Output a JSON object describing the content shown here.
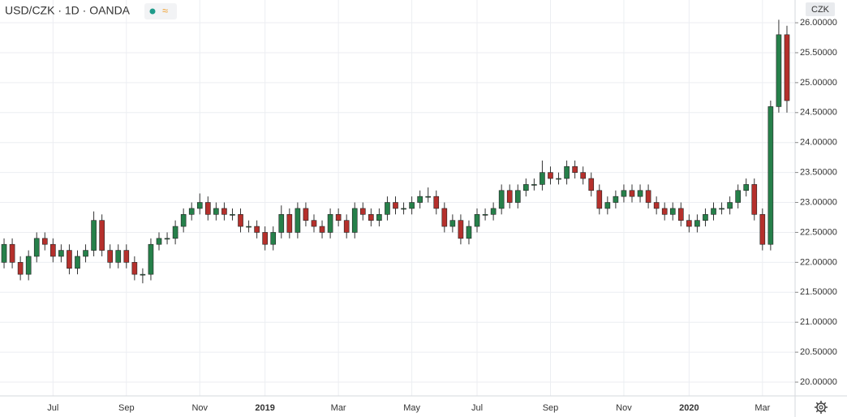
{
  "chart_data": {
    "type": "candlestick",
    "title": "USD/CZK · 1D · OANDA",
    "currency": "CZK",
    "up_color": "#26804a",
    "down_color": "#b5302c",
    "grid": true,
    "ylim": [
      19.77,
      26.38
    ],
    "yticks": [
      {
        "value": 20,
        "label": "20.00000"
      },
      {
        "value": 20.5,
        "label": "20.50000"
      },
      {
        "value": 21,
        "label": "21.00000"
      },
      {
        "value": 21.5,
        "label": "21.50000"
      },
      {
        "value": 22,
        "label": "22.00000"
      },
      {
        "value": 22.5,
        "label": "22.50000"
      },
      {
        "value": 23,
        "label": "23.00000"
      },
      {
        "value": 23.5,
        "label": "23.50000"
      },
      {
        "value": 24,
        "label": "24.00000"
      },
      {
        "value": 24.5,
        "label": "24.50000"
      },
      {
        "value": 25,
        "label": "25.00000"
      },
      {
        "value": 25.5,
        "label": "25.50000"
      },
      {
        "value": 26,
        "label": "26.00000"
      }
    ],
    "categories": [
      null,
      null,
      null,
      null,
      null,
      null,
      "Jul",
      null,
      null,
      null,
      null,
      null,
      null,
      null,
      null,
      "Sep",
      null,
      null,
      null,
      null,
      null,
      null,
      null,
      null,
      "Nov",
      null,
      null,
      null,
      null,
      null,
      null,
      null,
      "2019",
      null,
      null,
      null,
      null,
      null,
      null,
      null,
      null,
      "Mar",
      null,
      null,
      null,
      null,
      null,
      null,
      null,
      null,
      "May",
      null,
      null,
      null,
      null,
      null,
      null,
      null,
      "Jul",
      null,
      null,
      null,
      null,
      null,
      null,
      null,
      null,
      "Sep",
      null,
      null,
      null,
      null,
      null,
      null,
      null,
      null,
      "Nov",
      null,
      null,
      null,
      null,
      null,
      null,
      null,
      "2020",
      null,
      null,
      null,
      null,
      null,
      null,
      null,
      null,
      "Mar",
      null,
      null,
      null
    ],
    "ohlc": [
      [
        22.0,
        22.4,
        21.9,
        22.3
      ],
      [
        22.3,
        22.4,
        21.9,
        22.0
      ],
      [
        22.0,
        22.1,
        21.7,
        21.8
      ],
      [
        21.8,
        22.2,
        21.7,
        22.1
      ],
      [
        22.1,
        22.5,
        22.0,
        22.4
      ],
      [
        22.4,
        22.5,
        22.2,
        22.3
      ],
      [
        22.3,
        22.4,
        22.0,
        22.1
      ],
      [
        22.1,
        22.3,
        22.0,
        22.2
      ],
      [
        22.2,
        22.3,
        21.8,
        21.9
      ],
      [
        21.9,
        22.2,
        21.8,
        22.1
      ],
      [
        22.1,
        22.3,
        22.0,
        22.2
      ],
      [
        22.2,
        22.85,
        22.1,
        22.7
      ],
      [
        22.7,
        22.8,
        22.1,
        22.2
      ],
      [
        22.2,
        22.3,
        21.9,
        22.0
      ],
      [
        22.0,
        22.3,
        21.9,
        22.2
      ],
      [
        22.2,
        22.3,
        21.9,
        22.0
      ],
      [
        22.0,
        22.1,
        21.7,
        21.8
      ],
      [
        21.8,
        21.9,
        21.65,
        21.8
      ],
      [
        21.8,
        22.4,
        21.7,
        22.3
      ],
      [
        22.3,
        22.5,
        22.2,
        22.4
      ],
      [
        22.4,
        22.5,
        22.3,
        22.4
      ],
      [
        22.4,
        22.7,
        22.3,
        22.6
      ],
      [
        22.6,
        22.9,
        22.5,
        22.8
      ],
      [
        22.8,
        23.0,
        22.7,
        22.9
      ],
      [
        22.9,
        23.15,
        22.8,
        23.0
      ],
      [
        23.0,
        23.1,
        22.7,
        22.8
      ],
      [
        22.8,
        23.0,
        22.7,
        22.9
      ],
      [
        22.9,
        23.0,
        22.7,
        22.8
      ],
      [
        22.8,
        22.9,
        22.7,
        22.8
      ],
      [
        22.8,
        22.9,
        22.5,
        22.6
      ],
      [
        22.6,
        22.7,
        22.5,
        22.6
      ],
      [
        22.6,
        22.7,
        22.4,
        22.5
      ],
      [
        22.5,
        22.6,
        22.2,
        22.3
      ],
      [
        22.3,
        22.6,
        22.2,
        22.5
      ],
      [
        22.5,
        22.95,
        22.4,
        22.8
      ],
      [
        22.8,
        22.9,
        22.4,
        22.5
      ],
      [
        22.5,
        23.0,
        22.4,
        22.9
      ],
      [
        22.9,
        23.0,
        22.6,
        22.7
      ],
      [
        22.7,
        22.8,
        22.5,
        22.6
      ],
      [
        22.6,
        22.7,
        22.4,
        22.5
      ],
      [
        22.5,
        22.9,
        22.4,
        22.8
      ],
      [
        22.8,
        22.9,
        22.6,
        22.7
      ],
      [
        22.7,
        22.8,
        22.4,
        22.5
      ],
      [
        22.5,
        23.0,
        22.4,
        22.9
      ],
      [
        22.9,
        23.0,
        22.7,
        22.8
      ],
      [
        22.8,
        22.9,
        22.6,
        22.7
      ],
      [
        22.7,
        22.9,
        22.6,
        22.8
      ],
      [
        22.8,
        23.1,
        22.7,
        23.0
      ],
      [
        23.0,
        23.1,
        22.8,
        22.9
      ],
      [
        22.9,
        23.0,
        22.8,
        22.9
      ],
      [
        22.9,
        23.1,
        22.8,
        23.0
      ],
      [
        23.0,
        23.2,
        22.9,
        23.1
      ],
      [
        23.1,
        23.25,
        23.0,
        23.1
      ],
      [
        23.1,
        23.2,
        22.8,
        22.9
      ],
      [
        22.9,
        23.0,
        22.5,
        22.6
      ],
      [
        22.6,
        22.8,
        22.5,
        22.7
      ],
      [
        22.7,
        22.8,
        22.3,
        22.4
      ],
      [
        22.4,
        22.7,
        22.3,
        22.6
      ],
      [
        22.6,
        22.9,
        22.5,
        22.8
      ],
      [
        22.8,
        22.9,
        22.7,
        22.8
      ],
      [
        22.8,
        23.0,
        22.7,
        22.9
      ],
      [
        22.9,
        23.3,
        22.8,
        23.2
      ],
      [
        23.2,
        23.3,
        22.9,
        23.0
      ],
      [
        23.0,
        23.3,
        22.9,
        23.2
      ],
      [
        23.2,
        23.4,
        23.1,
        23.3
      ],
      [
        23.3,
        23.4,
        23.2,
        23.3
      ],
      [
        23.3,
        23.7,
        23.2,
        23.5
      ],
      [
        23.5,
        23.6,
        23.3,
        23.4
      ],
      [
        23.4,
        23.5,
        23.3,
        23.4
      ],
      [
        23.4,
        23.7,
        23.3,
        23.6
      ],
      [
        23.6,
        23.7,
        23.4,
        23.5
      ],
      [
        23.5,
        23.6,
        23.3,
        23.4
      ],
      [
        23.4,
        23.5,
        23.1,
        23.2
      ],
      [
        23.2,
        23.3,
        22.8,
        22.9
      ],
      [
        22.9,
        23.1,
        22.8,
        23.0
      ],
      [
        23.0,
        23.2,
        22.9,
        23.1
      ],
      [
        23.1,
        23.3,
        23.0,
        23.2
      ],
      [
        23.2,
        23.3,
        23.0,
        23.1
      ],
      [
        23.1,
        23.3,
        23.0,
        23.2
      ],
      [
        23.2,
        23.3,
        22.9,
        23.0
      ],
      [
        23.0,
        23.1,
        22.8,
        22.9
      ],
      [
        22.9,
        23.0,
        22.7,
        22.8
      ],
      [
        22.8,
        23.0,
        22.7,
        22.9
      ],
      [
        22.9,
        23.0,
        22.6,
        22.7
      ],
      [
        22.7,
        22.8,
        22.5,
        22.6
      ],
      [
        22.6,
        22.8,
        22.5,
        22.7
      ],
      [
        22.7,
        22.9,
        22.6,
        22.8
      ],
      [
        22.8,
        23.0,
        22.7,
        22.9
      ],
      [
        22.9,
        23.0,
        22.8,
        22.9
      ],
      [
        22.9,
        23.1,
        22.8,
        23.0
      ],
      [
        23.0,
        23.3,
        22.9,
        23.2
      ],
      [
        23.2,
        23.4,
        23.1,
        23.3
      ],
      [
        23.3,
        23.4,
        22.7,
        22.8
      ],
      [
        22.8,
        22.9,
        22.2,
        22.3
      ],
      [
        22.3,
        24.7,
        22.2,
        24.6
      ],
      [
        24.6,
        26.05,
        24.5,
        25.8
      ],
      [
        25.8,
        25.95,
        24.5,
        24.7
      ]
    ]
  }
}
